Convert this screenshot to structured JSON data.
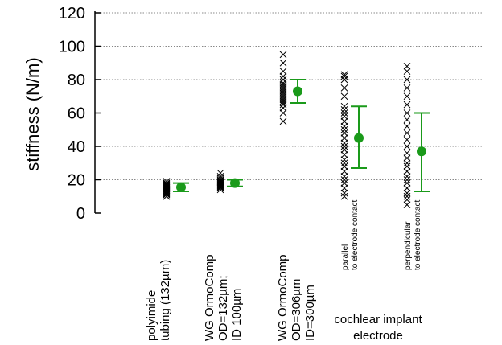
{
  "chart_data": {
    "type": "scatter",
    "title": "",
    "xlabel": "",
    "ylabel": "stiffness (N/m)",
    "ylim": [
      0,
      120
    ],
    "yticks": [
      "0",
      "20",
      "40",
      "60",
      "80",
      "100",
      "120"
    ],
    "grid": "horizontal dotted",
    "colors": {
      "points": "#000000",
      "summary": "#1a9a1a",
      "grid": "#888888"
    },
    "categories": [
      {
        "id": "polyimide",
        "label_lines": [
          "polyimide",
          "tubing (132µm)"
        ],
        "raw_points": [
          10,
          11,
          11.5,
          12,
          12.5,
          13,
          13.5,
          14,
          14.5,
          15,
          15.5,
          16,
          16.5,
          17,
          17.5,
          18,
          19
        ],
        "mean": 15.5,
        "error_low": 13,
        "error_high": 18
      },
      {
        "id": "ormocomp-132",
        "label_lines": [
          "WG OrmoComp",
          "OD=132µm;",
          "ID 100µm"
        ],
        "raw_points": [
          14,
          15,
          15.5,
          16,
          16.5,
          17,
          17.5,
          18,
          18.5,
          19,
          19.5,
          20,
          21,
          22,
          24
        ],
        "mean": 18,
        "error_low": 16,
        "error_high": 20
      },
      {
        "id": "ormocomp-306",
        "label_lines": [
          "WG OrmoComp",
          "OD=306µm",
          "ID=300µm"
        ],
        "raw_points": [
          55,
          60,
          63,
          65,
          66,
          67,
          68,
          69,
          70,
          71,
          72,
          73,
          74,
          75,
          76,
          77,
          78,
          80,
          82,
          85,
          90,
          95
        ],
        "mean": 73,
        "error_low": 66,
        "error_high": 80
      },
      {
        "id": "parallel",
        "label_lines": [
          "parallel",
          "to electrode contact"
        ],
        "raw_points": [
          10,
          12,
          15,
          18,
          20,
          22,
          25,
          28,
          30,
          32,
          35,
          38,
          40,
          42,
          45,
          48,
          50,
          52,
          55,
          58,
          60,
          62,
          64,
          70,
          75,
          80,
          82,
          83
        ],
        "mean": 45,
        "error_low": 27,
        "error_high": 64
      },
      {
        "id": "perpendicular",
        "label_lines": [
          "perpendicular",
          "to electrode contact"
        ],
        "raw_points": [
          5,
          8,
          10,
          12,
          15,
          18,
          20,
          22,
          25,
          28,
          30,
          33,
          36,
          40,
          44,
          48,
          52,
          56,
          60,
          65,
          70,
          75,
          80,
          85,
          88
        ],
        "mean": 37,
        "error_low": 13,
        "error_high": 60
      }
    ],
    "group_label_lines": [
      "cochlear implant",
      "electrode"
    ]
  }
}
